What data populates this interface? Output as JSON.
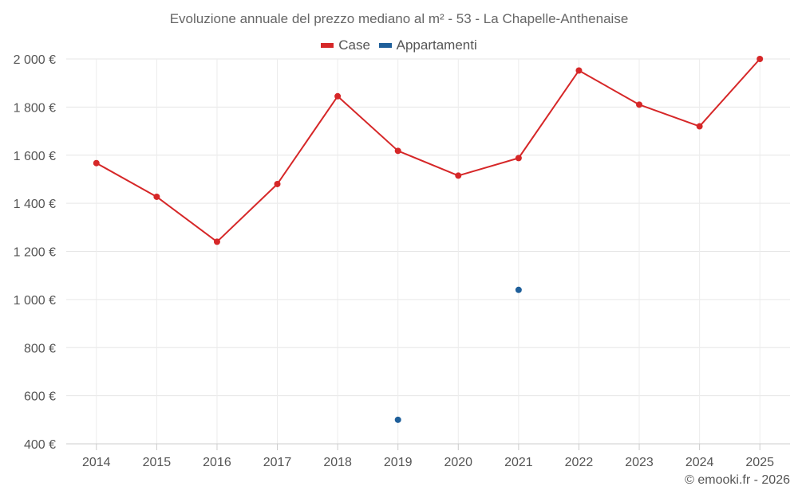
{
  "chart_data": {
    "type": "line",
    "title": "Evoluzione annuale del prezzo mediano al m² - 53 - La Chapelle-Anthenaise",
    "categories": [
      "2014",
      "2015",
      "2016",
      "2017",
      "2018",
      "2019",
      "2020",
      "2021",
      "2022",
      "2023",
      "2024",
      "2025"
    ],
    "series": [
      {
        "name": "Case",
        "color": "#d62728",
        "values": [
          1567,
          1427,
          1240,
          1480,
          1845,
          1618,
          1515,
          1588,
          1952,
          1810,
          1720,
          2000
        ]
      },
      {
        "name": "Appartamenti",
        "color": "#1f5f9a",
        "values": [
          null,
          null,
          null,
          null,
          null,
          500,
          null,
          1040,
          null,
          null,
          null,
          null
        ]
      }
    ],
    "ylim": [
      400,
      2000
    ],
    "yticks": [
      400,
      600,
      800,
      1000,
      1200,
      1400,
      1600,
      1800,
      2000
    ],
    "ytick_labels": [
      "400 €",
      "600 €",
      "800 €",
      "1 000 €",
      "1 200 €",
      "1 400 €",
      "1 600 €",
      "1 800 €",
      "2 000 €"
    ],
    "grid": true,
    "legend_position": "top-center"
  },
  "credit": "© emooki.fr - 2026"
}
